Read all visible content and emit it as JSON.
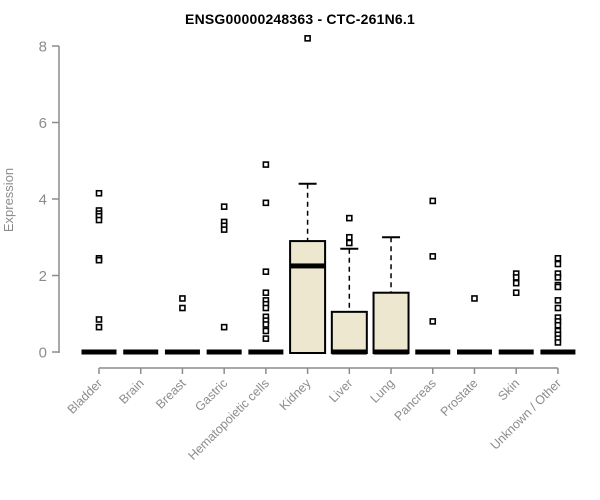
{
  "chart_data": {
    "type": "boxplot",
    "title": "ENSG00000248363 - CTC-261N6.1",
    "ylabel": "Expression",
    "xlabel": "",
    "ylim": [
      0,
      8
    ],
    "yticks": [
      0,
      2,
      4,
      6,
      8
    ],
    "grid": false,
    "legend": false,
    "categories": [
      "Bladder",
      "Brain",
      "Breast",
      "Gastric",
      "Hematopoietic cells",
      "Kidney",
      "Liver",
      "Lung",
      "Pancreas",
      "Prostate",
      "Skin",
      "Unknown / Other"
    ],
    "series": [
      {
        "category": "Bladder",
        "q1": 0,
        "median": 0,
        "q3": 0,
        "whisker_low": 0,
        "whisker_high": 0,
        "outliers": [
          4.15,
          3.7,
          3.62,
          3.55,
          3.45,
          2.45,
          2.4,
          0.85,
          0.65
        ]
      },
      {
        "category": "Brain",
        "q1": 0,
        "median": 0,
        "q3": 0,
        "whisker_low": 0,
        "whisker_high": 0,
        "outliers": []
      },
      {
        "category": "Breast",
        "q1": 0,
        "median": 0,
        "q3": 0,
        "whisker_low": 0,
        "whisker_high": 0,
        "outliers": [
          1.4,
          1.15
        ]
      },
      {
        "category": "Gastric",
        "q1": 0,
        "median": 0,
        "q3": 0,
        "whisker_low": 0,
        "whisker_high": 0,
        "outliers": [
          3.8,
          3.4,
          3.3,
          3.2,
          0.65
        ]
      },
      {
        "category": "Hematopoietic cells",
        "q1": 0,
        "median": 0,
        "q3": 0,
        "whisker_low": 0,
        "whisker_high": 0,
        "outliers": [
          4.9,
          3.9,
          2.1,
          1.55,
          1.35,
          1.25,
          1.15,
          0.92,
          0.82,
          0.72,
          0.55,
          0.35
        ]
      },
      {
        "category": "Kidney",
        "q1": 0,
        "median": 2.25,
        "q3": 2.9,
        "whisker_low": 0,
        "whisker_high": 4.4,
        "outliers": [
          8.2
        ]
      },
      {
        "category": "Liver",
        "q1": 0,
        "median": 0,
        "q3": 1.05,
        "whisker_low": 0,
        "whisker_high": 2.7,
        "outliers": [
          3.5,
          3.0,
          2.85
        ]
      },
      {
        "category": "Lung",
        "q1": 0,
        "median": 0,
        "q3": 1.55,
        "whisker_low": 0,
        "whisker_high": 3.0,
        "outliers": []
      },
      {
        "category": "Pancreas",
        "q1": 0,
        "median": 0,
        "q3": 0,
        "whisker_low": 0,
        "whisker_high": 0,
        "outliers": [
          3.95,
          2.5,
          0.8
        ]
      },
      {
        "category": "Prostate",
        "q1": 0,
        "median": 0,
        "q3": 0,
        "whisker_low": 0,
        "whisker_high": 0,
        "outliers": [
          1.4
        ]
      },
      {
        "category": "Skin",
        "q1": 0,
        "median": 0,
        "q3": 0,
        "whisker_low": 0,
        "whisker_high": 0,
        "outliers": [
          2.05,
          1.95,
          1.8,
          1.55
        ]
      },
      {
        "category": "Unknown / Other",
        "q1": 0,
        "median": 0,
        "q3": 0,
        "whisker_low": 0,
        "whisker_high": 0,
        "outliers": [
          2.45,
          2.3,
          2.05,
          1.95,
          1.75,
          1.7,
          1.35,
          1.15,
          0.9,
          0.8,
          0.7,
          0.55,
          0.45,
          0.35,
          0.25
        ]
      }
    ],
    "colors": {
      "box_fill": "#ece7ce",
      "box_border": "#000000",
      "median": "#000000",
      "whisker": "#000000",
      "outlier_stroke": "#000000",
      "outlier_fill": "#ffffff",
      "axis": "#8c8c8c",
      "tick_label": "#8c8c8c",
      "title": "#000000",
      "background": "#ffffff"
    }
  }
}
